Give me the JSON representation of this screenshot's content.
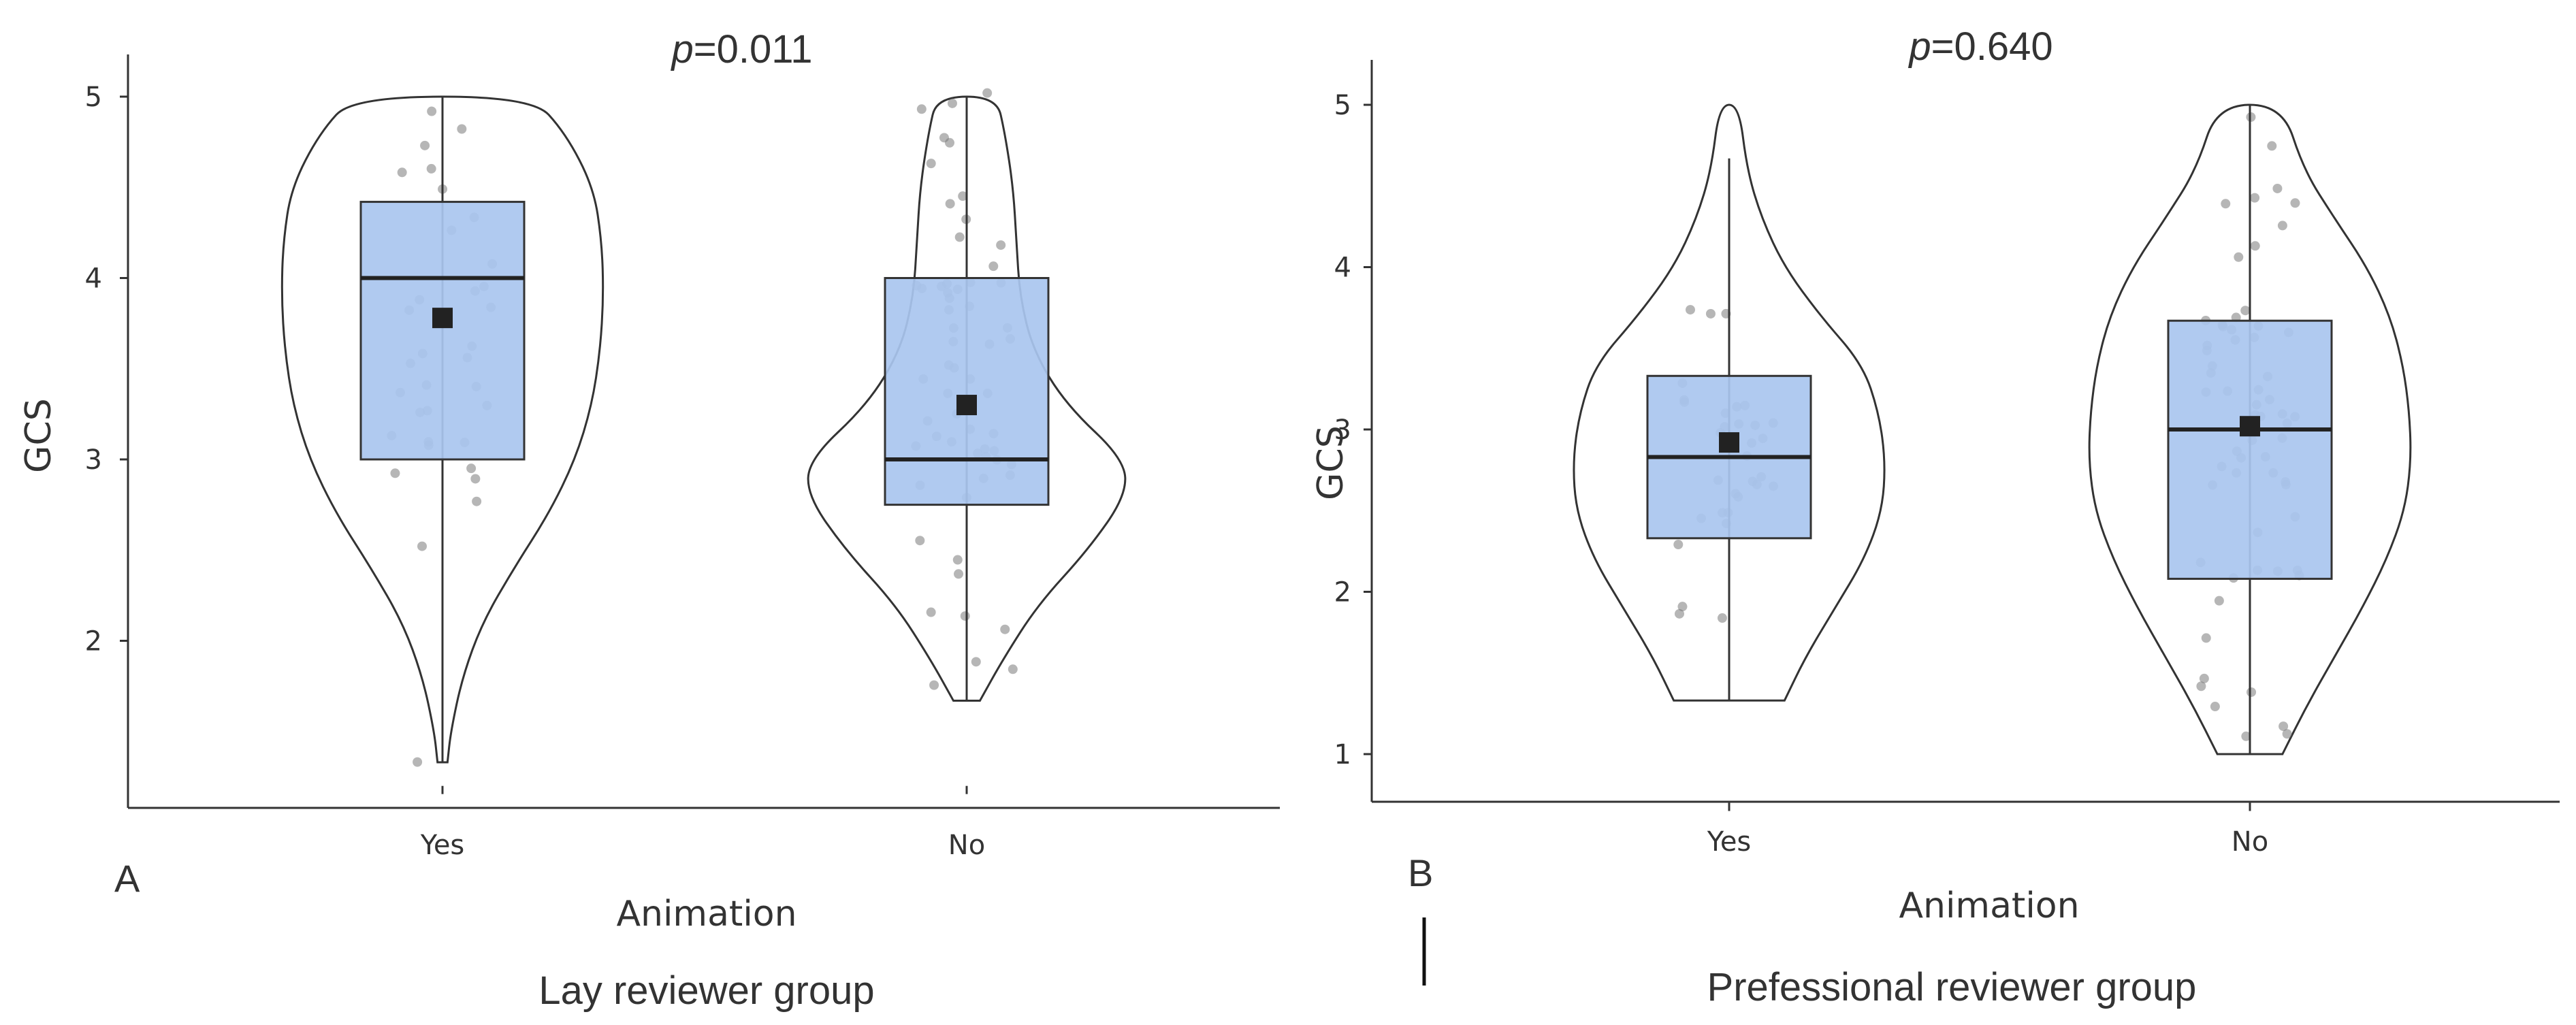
{
  "chart_data": [
    {
      "type": "violin",
      "panel_label": "A",
      "p_prefix": "p",
      "p_text": "=0.011",
      "xlabel": "Animation",
      "ylabel": "GCS",
      "caption": "Lay reviewer group",
      "categories": [
        "Yes",
        "No"
      ],
      "ylim": [
        1.2,
        5.3
      ],
      "yticks": [
        "2",
        "3",
        "4",
        "5"
      ],
      "box": [
        {
          "category": "Yes",
          "whisker_low": 1.33,
          "q1": 3.0,
          "median": 4.0,
          "q3": 4.42,
          "whisker_high": 5.0,
          "mean": 3.78
        },
        {
          "category": "No",
          "whisker_low": 1.67,
          "q1": 2.75,
          "median": 3.0,
          "q3": 4.0,
          "whisker_high": 5.0,
          "mean": 3.3
        }
      ]
    },
    {
      "type": "violin",
      "panel_label": "B",
      "p_prefix": "p",
      "p_text": "=0.640",
      "xlabel": "Animation",
      "ylabel": "GCS",
      "caption": "Prefessional reviewer group",
      "categories": [
        "Yes",
        "No"
      ],
      "ylim": [
        0.7,
        5.3
      ],
      "yticks": [
        "1",
        "2",
        "3",
        "4",
        "5"
      ],
      "box": [
        {
          "category": "Yes",
          "whisker_low": 1.33,
          "q1": 2.33,
          "median": 2.83,
          "q3": 3.33,
          "whisker_high": 4.67,
          "mean": 2.92
        },
        {
          "category": "No",
          "whisker_low": 1.0,
          "q1": 2.08,
          "median": 3.0,
          "q3": 3.67,
          "whisker_high": 5.0,
          "mean": 3.02
        }
      ]
    }
  ],
  "colors": {
    "box_fill": "#a9c5ef",
    "outline": "#333333",
    "mean_marker": "#222222",
    "jitter_points": "#7a7a7a"
  }
}
